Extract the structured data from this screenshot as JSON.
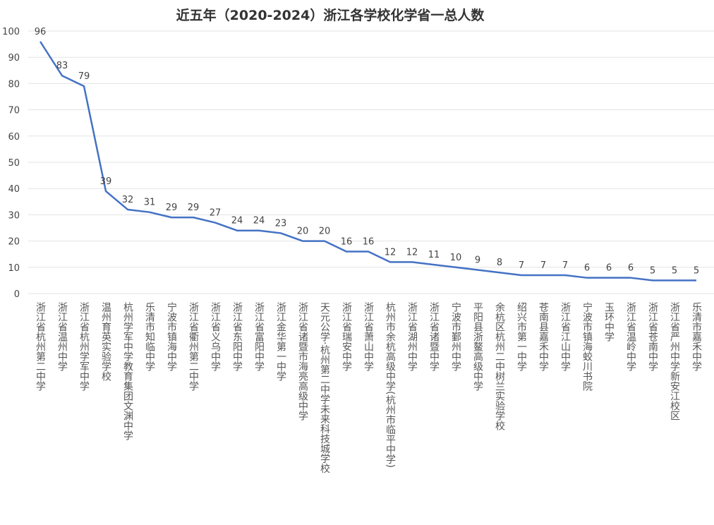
{
  "chart_data": {
    "type": "line",
    "title": "近五年（2020-2024）浙江各学校化学省一总人数",
    "categories": [
      "浙江省杭州第二中学",
      "浙江省温州中学",
      "浙江省杭州学军中学",
      "温州育英实验学校",
      "杭州学军中学教育集团文渊中学",
      "乐清市知临中学",
      "宁波市镇海中学",
      "浙江省衢州第二中学",
      "浙江省义乌中学",
      "浙江省东阳中学",
      "浙江省富阳中学",
      "浙江金华第一中学",
      "浙江省诸暨市海亮高级中学",
      "天元公学·杭州第二中学未来科技城学校",
      "浙江省瑞安中学",
      "浙江省萧山中学",
      "杭州市余杭高级中学(杭州市临平中学)",
      "浙江省湖州中学",
      "浙江省诸暨中学",
      "宁波市鄞州中学",
      "平阳县浙鳌高级中学",
      "余杭区杭州二中树兰实验学校",
      "绍兴市第一中学",
      "苍南县嘉禾中学",
      "浙江省江山中学",
      "宁波市镇海蛟川书院",
      "玉环中学",
      "浙江省温岭中学",
      "浙江省苍南中学",
      "浙江省严州中学新安江校区",
      "乐清市嘉禾中学"
    ],
    "values": [
      96,
      83,
      79,
      39,
      32,
      31,
      29,
      29,
      27,
      24,
      24,
      23,
      20,
      20,
      16,
      16,
      12,
      12,
      11,
      10,
      9,
      8,
      7,
      7,
      7,
      6,
      6,
      6,
      5,
      5,
      5
    ],
    "color": "#4472c4",
    "ylim": [
      0,
      100
    ],
    "yticks": [
      0,
      10,
      20,
      30,
      40,
      50,
      60,
      70,
      80,
      90,
      100
    ],
    "grid": true
  }
}
